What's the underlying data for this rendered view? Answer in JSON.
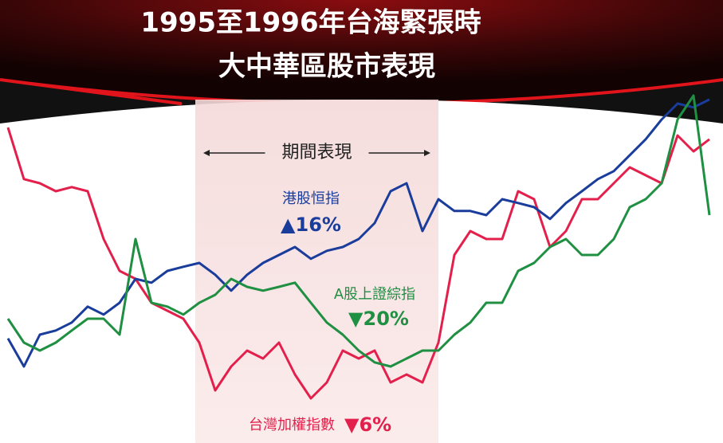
{
  "chart_data": {
    "type": "line",
    "title": "1995至1996年台海緊張時",
    "subtitle": "大中華區股市表現",
    "period_label": "期間表現",
    "period": [
      11.75,
      27
    ],
    "xlim": [
      0,
      44
    ],
    "ylim": [
      0,
      105
    ],
    "x": [
      0,
      1,
      2,
      3,
      4,
      5,
      6,
      7,
      8,
      9,
      10,
      11,
      12,
      13,
      14,
      15,
      16,
      17,
      18,
      19,
      20,
      21,
      22,
      23,
      24,
      25,
      26,
      27,
      28,
      29,
      30,
      31,
      32,
      33,
      34,
      35,
      36,
      37,
      38,
      39,
      40,
      41,
      42,
      43,
      44
    ],
    "series": [
      {
        "name": "台灣加權指數",
        "color": "#e3204c",
        "change": -6,
        "change_label": "▼6%",
        "values": [
          90,
          73.8,
          72.5,
          70,
          71.3,
          70,
          55,
          45,
          42.5,
          35,
          32.5,
          30,
          22.5,
          7.5,
          15,
          20,
          17.5,
          22.5,
          12.5,
          5,
          10,
          20,
          17.5,
          20,
          10,
          12.5,
          10,
          22.5,
          50,
          57.5,
          55,
          55,
          70,
          67.5,
          52.5,
          57.5,
          67.5,
          67.5,
          72.5,
          77.5,
          75,
          72.5,
          87.5,
          82.5,
          86.3
        ]
      },
      {
        "name": "港股恒指",
        "color": "#1a3d9c",
        "change": 16,
        "change_label": "▲16%",
        "values": [
          23.8,
          15,
          25,
          26.3,
          28.8,
          33.8,
          31.3,
          35,
          42.5,
          41.3,
          45,
          46.3,
          47.5,
          43.8,
          38.8,
          43.8,
          47.5,
          50,
          52.5,
          48.8,
          51.3,
          52.5,
          55,
          60,
          70,
          72.5,
          57.5,
          67.5,
          63.8,
          63.8,
          62.5,
          67.5,
          66.3,
          65,
          61.3,
          66.3,
          70,
          73.8,
          76.3,
          81.3,
          86.3,
          92.5,
          97.5,
          96.3,
          98.8
        ]
      },
      {
        "name": "A股上證綜指",
        "color": "#1f8f42",
        "change": -20,
        "change_label": "▼20%",
        "values": [
          30,
          22.5,
          20,
          22.5,
          26.3,
          30,
          30,
          25,
          55,
          35,
          33.8,
          31.3,
          35,
          37.5,
          42.5,
          40,
          38.8,
          40,
          41.3,
          35,
          28.8,
          25,
          20,
          16.3,
          15,
          17.5,
          20,
          20,
          25,
          28.8,
          35,
          35,
          45,
          47.5,
          52.5,
          55,
          50,
          50,
          55,
          65,
          67.5,
          72.5,
          92.5,
          100,
          62.5
        ]
      }
    ]
  }
}
